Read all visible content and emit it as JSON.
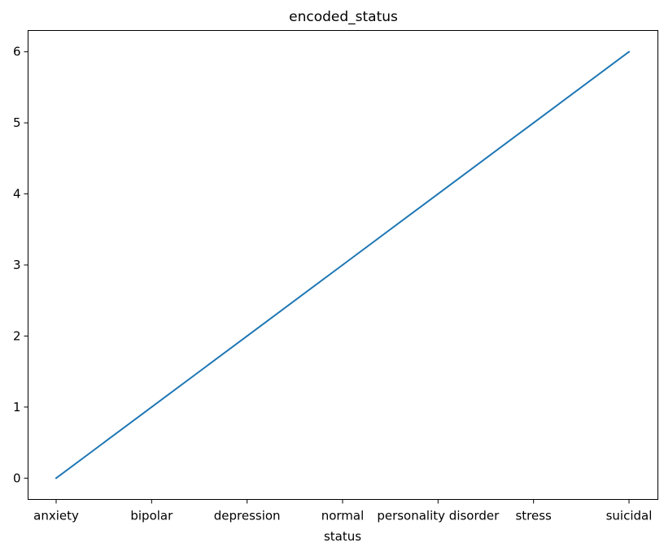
{
  "chart_data": {
    "type": "line",
    "title": "encoded_status",
    "xlabel": "status",
    "ylabel": "",
    "categories": [
      "anxiety",
      "bipolar",
      "depression",
      "normal",
      "personality disorder",
      "stress",
      "suicidal"
    ],
    "series": [
      {
        "values": [
          0,
          1,
          2,
          3,
          4,
          5,
          6
        ],
        "color": "#1f77b4"
      }
    ],
    "yticks": [
      0,
      1,
      2,
      3,
      4,
      5,
      6
    ],
    "ylim": [
      -0.3,
      6.3
    ],
    "grid": false,
    "legend": "none"
  }
}
